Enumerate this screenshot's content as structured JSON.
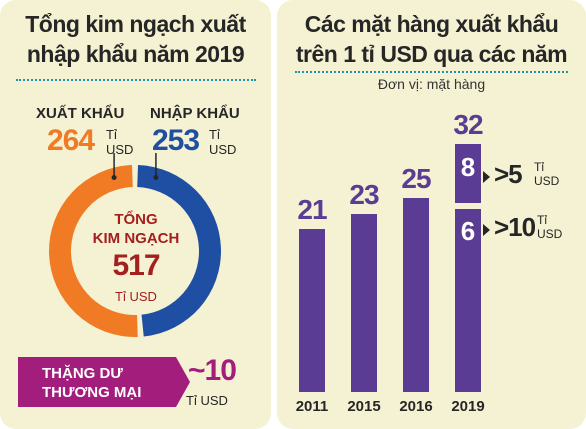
{
  "left_panel": {
    "title_line1": "Tổng kim ngạch xuất",
    "title_line2": "nhập khẩu năm 2019",
    "export": {
      "label": "XUẤT KHẨU",
      "value": "264",
      "unit_line1": "Tỉ",
      "unit_line2": "USD"
    },
    "import": {
      "label": "NHẬP KHẨU",
      "value": "253",
      "unit_line1": "Tỉ",
      "unit_line2": "USD"
    },
    "total": {
      "label_line1": "TỔNG",
      "label_line2": "KIM NGẠCH",
      "value": "517",
      "unit": "Tỉ USD"
    },
    "balance": {
      "label_line1": "THẶNG DƯ",
      "label_line2": "THƯƠNG MẠI",
      "value": "~10",
      "unit": "Tỉ USD"
    },
    "colors": {
      "export": "#f07b24",
      "import": "#1f4fa3",
      "total_text": "#a3201f",
      "balance_box": "#a21d7c"
    }
  },
  "right_panel": {
    "title_line1": "Các mặt hàng xuất khẩu",
    "title_line2": "trên 1 tỉ USD qua các năm",
    "unit_note": "Đơn vị: mặt hàng",
    "annotations": [
      {
        "value": ">5",
        "unit_line1": "Tỉ",
        "unit_line2": "USD"
      },
      {
        "value": ">10",
        "unit_line1": "Tỉ",
        "unit_line2": "USD"
      }
    ],
    "colors": {
      "bar": "#5a3c94",
      "label": "#5a3c94"
    }
  },
  "chart_data": [
    {
      "type": "pie",
      "categories": [
        "XUẤT KHẨU",
        "NHẬP KHẨU"
      ],
      "values": [
        264,
        253
      ],
      "center_value": 517
    },
    {
      "type": "bar",
      "categories": [
        "2011",
        "2015",
        "2016",
        "2019"
      ],
      "values": [
        21,
        23,
        25,
        32
      ],
      "breakdown_2019": [
        {
          "label": ">5",
          "value": 8
        },
        {
          "label": ">10",
          "value": 6
        }
      ],
      "ylim": [
        0,
        32
      ]
    }
  ]
}
